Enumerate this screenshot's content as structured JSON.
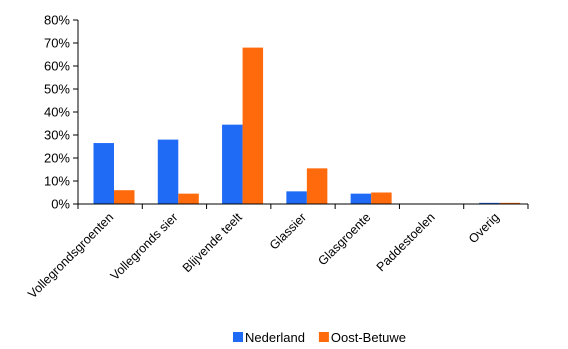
{
  "chart_data": {
    "type": "bar",
    "categories": [
      "Vollegrondsgroenten",
      "Vollegronds sier",
      "Blijvende teelt",
      "Glassier",
      "Glasgroente",
      "Paddestoelen",
      "Overig"
    ],
    "series": [
      {
        "name": "Nederland",
        "color": "#1F6BF5",
        "values": [
          26.5,
          28,
          34.5,
          5.5,
          4.5,
          0,
          0.5
        ]
      },
      {
        "name": "Oost-Betuwe",
        "color": "#FF6A0D",
        "values": [
          6,
          4.5,
          68,
          15.5,
          5,
          0,
          0.5
        ]
      }
    ],
    "y_ticks": [
      "0%",
      "10%",
      "20%",
      "30%",
      "40%",
      "50%",
      "60%",
      "70%",
      "80%"
    ],
    "ylim": [
      0,
      80
    ],
    "y_unit": "%",
    "grid": false,
    "legend_position": "bottom"
  }
}
